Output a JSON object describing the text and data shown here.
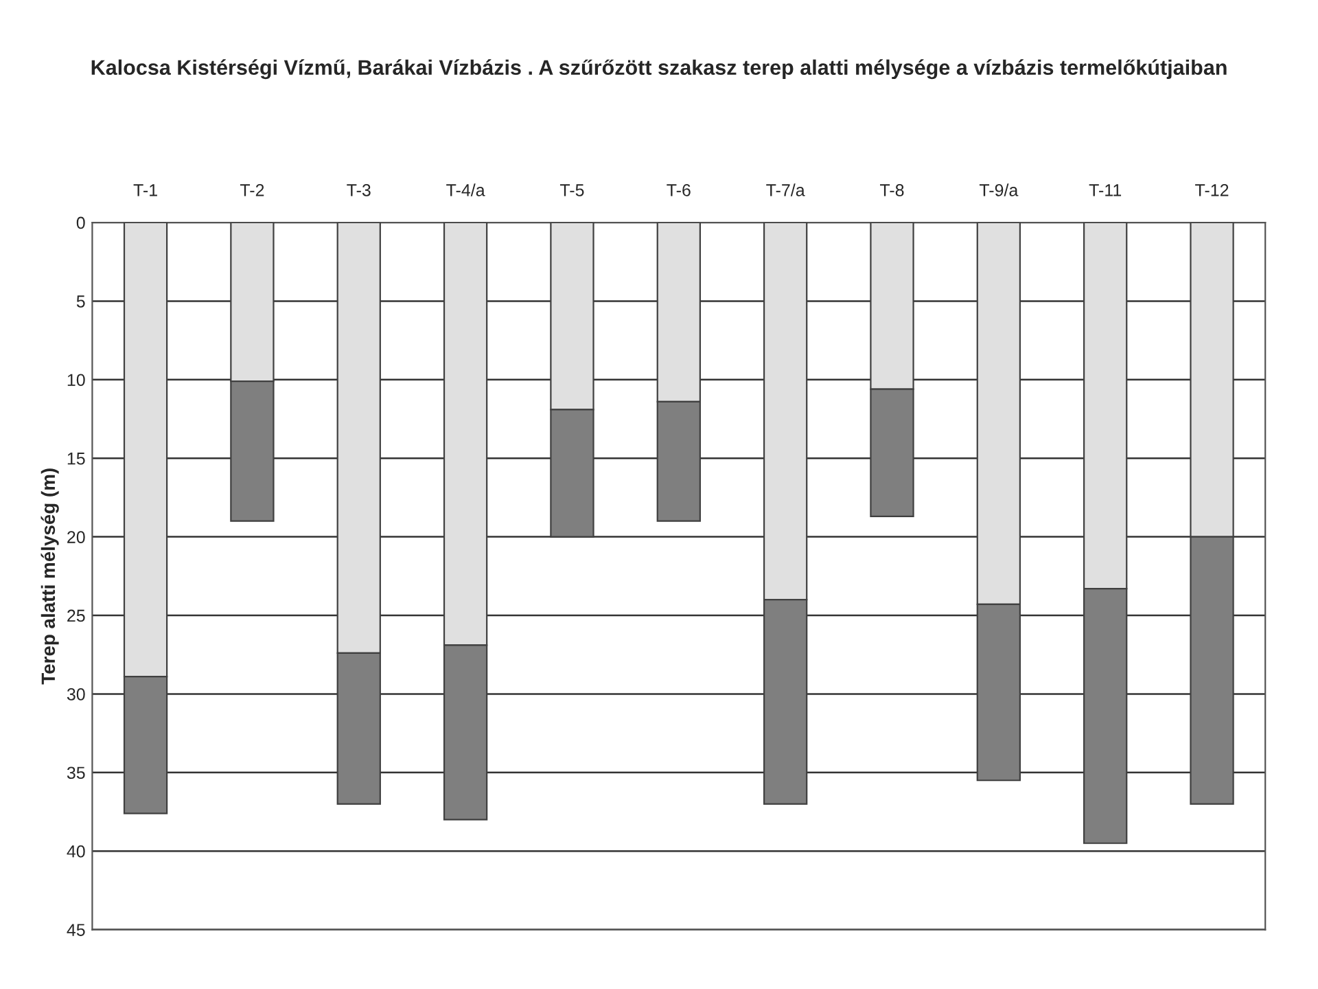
{
  "chart_data": {
    "type": "bar",
    "stacked": true,
    "title": "Kalocsa Kistérségi Vízmű, Barákai Vízbázis . A szűrőzött szakasz terep alatti mélysége a vízbázis termelőkútjaiban",
    "ylabel": "Terep alatti mélység (m)",
    "categories": [
      "T-1",
      "T-2",
      "T-3",
      "T-4/a",
      "T-5",
      "T-6",
      "T-7/a",
      "T-8",
      "T-9/a",
      "T-11",
      "T-12"
    ],
    "series": [
      {
        "color": "#e0e0e0",
        "values": [
          28.9,
          10.1,
          27.4,
          26.9,
          11.9,
          11.4,
          24.0,
          10.6,
          24.3,
          23.3,
          20.0
        ]
      },
      {
        "color": "#7f7f7f",
        "values": [
          8.7,
          8.9,
          9.6,
          11.1,
          8.1,
          7.6,
          13.0,
          8.1,
          11.2,
          16.2,
          17.0
        ]
      }
    ],
    "ylim": [
      45,
      0
    ],
    "yticks": [
      0,
      5,
      10,
      15,
      20,
      25,
      30,
      35,
      40,
      45
    ],
    "grid": "y"
  }
}
